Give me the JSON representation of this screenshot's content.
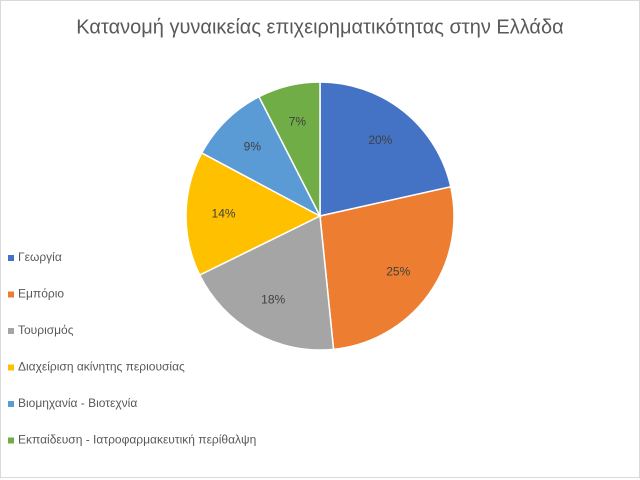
{
  "chart_data": {
    "type": "pie",
    "title": "Κατανομή γυναικείας επιχειρηματικότητας στην Ελλάδα",
    "categories": [
      "Γεωργία",
      "Εμπόριο",
      "Τουρισμός",
      "Διαχείριση ακίνητης περιουσίας",
      "Βιομηχανία - Βιοτεχνία",
      "Εκπαίδευση - Ιατροφαρμακευτική περίθαλψη"
    ],
    "values": [
      20,
      25,
      18,
      14,
      9,
      7
    ],
    "value_labels": [
      "20%",
      "25%",
      "18%",
      "14%",
      "9%",
      "7%"
    ],
    "colors": [
      "#4472c4",
      "#ed7d31",
      "#a5a5a5",
      "#ffc000",
      "#5b9bd5",
      "#70ad47"
    ],
    "legend": "left"
  }
}
